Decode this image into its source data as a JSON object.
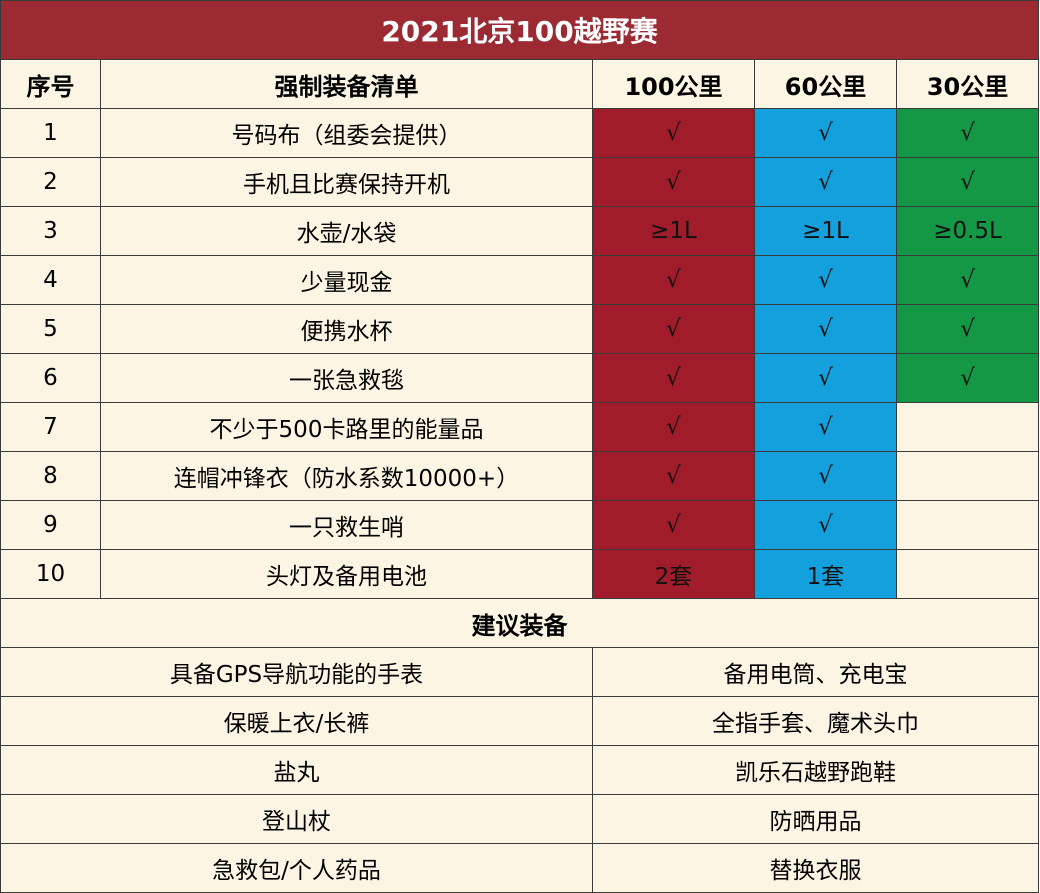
{
  "title": "2021北京100越野赛",
  "headers": {
    "no": "序号",
    "item": "强制装备清单",
    "d100": "100公里",
    "d60": "60公里",
    "d30": "30公里"
  },
  "mandatory": [
    {
      "no": "1",
      "item": "号码布（组委会提供）",
      "d100": "√",
      "d60": "√",
      "d30": "√"
    },
    {
      "no": "2",
      "item": "手机且比赛保持开机",
      "d100": "√",
      "d60": "√",
      "d30": "√"
    },
    {
      "no": "3",
      "item": "水壶/水袋",
      "d100": "≥1L",
      "d60": "≥1L",
      "d30": "≥0.5L"
    },
    {
      "no": "4",
      "item": "少量现金",
      "d100": "√",
      "d60": "√",
      "d30": "√"
    },
    {
      "no": "5",
      "item": "便携水杯",
      "d100": "√",
      "d60": "√",
      "d30": "√"
    },
    {
      "no": "6",
      "item": "一张急救毯",
      "d100": "√",
      "d60": "√",
      "d30": "√"
    },
    {
      "no": "7",
      "item": "不少于500卡路里的能量品",
      "d100": "√",
      "d60": "√",
      "d30": ""
    },
    {
      "no": "8",
      "item": "连帽冲锋衣（防水系数10000+）",
      "d100": "√",
      "d60": "√",
      "d30": ""
    },
    {
      "no": "9",
      "item": "一只救生哨",
      "d100": "√",
      "d60": "√",
      "d30": ""
    },
    {
      "no": "10",
      "item": "头灯及备用电池",
      "d100": "2套",
      "d60": "1套",
      "d30": ""
    }
  ],
  "suggested_title": "建议装备",
  "suggested": [
    {
      "left": "具备GPS导航功能的手表",
      "right": "备用电筒、充电宝"
    },
    {
      "left": "保暖上衣/长裤",
      "right": "全指手套、魔术头巾"
    },
    {
      "left": "盐丸",
      "right": "凯乐石越野跑鞋"
    },
    {
      "left": "登山杖",
      "right": "防晒用品"
    },
    {
      "left": "急救包/个人药品",
      "right": "替换衣服"
    }
  ],
  "colors": {
    "title_bg": "#9b2a33",
    "col100": "#a11c2b",
    "col60": "#13a0dd",
    "col30": "#159845",
    "cream": "#fcf5e4"
  }
}
